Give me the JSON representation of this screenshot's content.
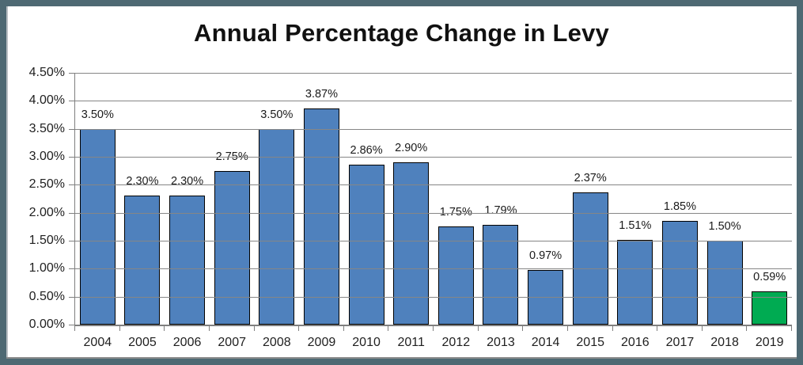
{
  "title": "Annual Percentage Change in Levy",
  "chart_data": {
    "type": "bar",
    "title": "Annual Percentage Change in Levy",
    "categories": [
      "2004",
      "2005",
      "2006",
      "2007",
      "2008",
      "2009",
      "2010",
      "2011",
      "2012",
      "2013",
      "2014",
      "2015",
      "2016",
      "2017",
      "2018",
      "2019"
    ],
    "values": [
      3.5,
      2.3,
      2.3,
      2.75,
      3.5,
      3.87,
      2.86,
      2.9,
      1.75,
      1.79,
      0.97,
      2.37,
      1.51,
      1.85,
      1.5,
      0.59
    ],
    "data_labels": [
      "3.50%",
      "2.30%",
      "2.30%",
      "2.75%",
      "3.50%",
      "3.87%",
      "2.86%",
      "2.90%",
      "1.75%",
      "1.79%",
      "0.97%",
      "2.37%",
      "1.51%",
      "1.85%",
      "1.50%",
      "0.59%"
    ],
    "xlabel": "",
    "ylabel": "",
    "ylim": [
      0,
      4.5
    ],
    "ytick_step": 0.5,
    "yticks": [
      "4.50%",
      "4.00%",
      "3.50%",
      "3.00%",
      "2.50%",
      "2.00%",
      "1.50%",
      "1.00%",
      "0.50%",
      "0.00%"
    ],
    "grid": true,
    "legend": "none",
    "bar_color": "#4F81BD",
    "bar_border_color": "#000000",
    "highlight_index": 15,
    "highlight_color": "#00AB52",
    "gridline_color": "#868686",
    "axis_color": "#7f7f7f",
    "frame_border_color": "#4E6973"
  }
}
